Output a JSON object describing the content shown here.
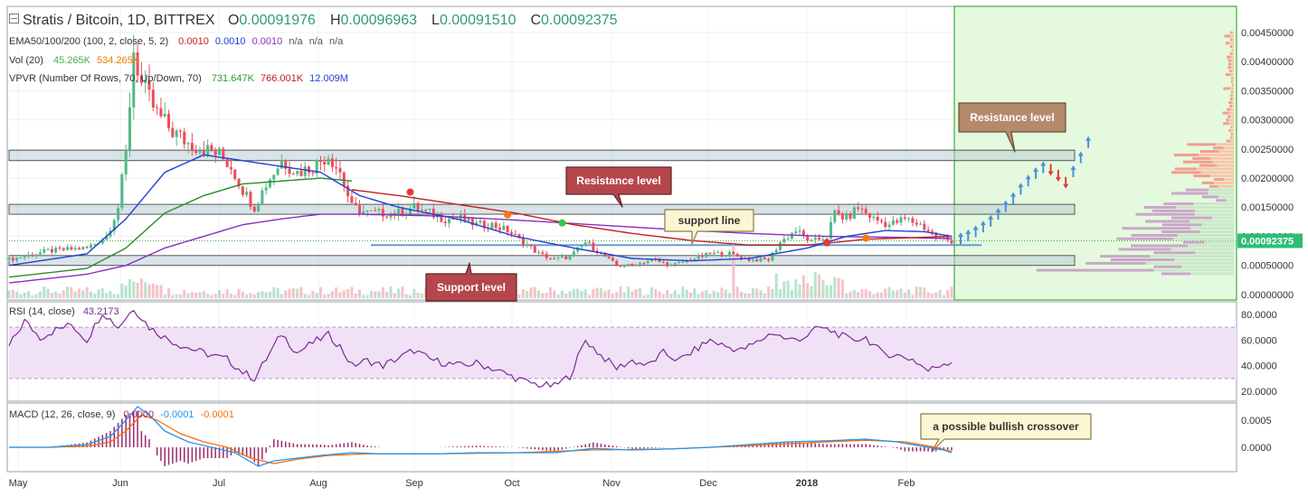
{
  "header": {
    "symbol": "Stratis / Bitcoin, 1D, BITTREX",
    "ohlc": [
      {
        "k": "O",
        "v": "0.00091976"
      },
      {
        "k": "H",
        "v": "0.00096963"
      },
      {
        "k": "L",
        "v": "0.00091510"
      },
      {
        "k": "C",
        "v": "0.00092375"
      }
    ],
    "ema_label": "EMA50/100/200 (100, 2, close, 5, 2)",
    "ema_values": [
      "0.0010",
      "0.0010",
      "0.0010",
      "n/a",
      "n/a",
      "n/a"
    ],
    "vol_label": "Vol (20)",
    "vol_values": [
      "45.265K",
      "534.265K"
    ],
    "vpvr_label": "VPVR (Number Of Rows, 70, Up/Down, 70)",
    "vpvr_values": [
      "731.647K",
      "766.001K",
      "12.009M"
    ]
  },
  "colors": {
    "up": "#53b987",
    "down": "#eb4d5c",
    "ema50": "#1f3fd6",
    "ema100": "#c22020",
    "ema200": "#8a2cc4",
    "green_ema": "#2a8c2a",
    "forecast_bg": "#e4f9dd",
    "zone": "#b9cdd6",
    "rsi": "#7a2a94",
    "macd": "#2196f3",
    "signal": "#ff6d00",
    "hist": "#9c2a6a",
    "support": "#6a9ad6",
    "callout_brown": "#b58a6c",
    "callout_red": "#b5474c",
    "callout_yellow": "#fbf6d3"
  },
  "annotations": {
    "resistance_left": "Resistance level",
    "resistance_right": "Resistance level",
    "support_level": "Support level",
    "support_line": "support line",
    "bullish": "a possible bullish crossover"
  },
  "chart_data": [
    {
      "type": "candlestick",
      "title": "Stratis / Bitcoin, 1D, BITTREX",
      "x_ticks": [
        "May",
        "Jun",
        "Jul",
        "Aug",
        "Sep",
        "Oct",
        "Nov",
        "Dec",
        "2018",
        "Feb"
      ],
      "y_ticks": [
        "0.00450000",
        "0.00400000",
        "0.00350000",
        "0.00300000",
        "0.00250000",
        "0.00200000",
        "0.00150000",
        "0.00100000",
        "0.00050000",
        "0.00000000"
      ],
      "ylim": [
        0,
        0.0047
      ],
      "last_price_label": "0.00092375",
      "close_anchors": [
        [
          0,
          0.0006
        ],
        [
          10,
          0.00075
        ],
        [
          20,
          0.0008
        ],
        [
          25,
          0.001
        ],
        [
          28,
          0.0015
        ],
        [
          30,
          0.0024
        ],
        [
          32,
          0.0042
        ],
        [
          34,
          0.0036
        ],
        [
          38,
          0.0031
        ],
        [
          42,
          0.0028
        ],
        [
          46,
          0.0026
        ],
        [
          50,
          0.0025
        ],
        [
          54,
          0.0024
        ],
        [
          57,
          0.0022
        ],
        [
          60,
          0.0018
        ],
        [
          63,
          0.0015
        ],
        [
          66,
          0.0019
        ],
        [
          70,
          0.0023
        ],
        [
          74,
          0.0021
        ],
        [
          78,
          0.0022
        ],
        [
          82,
          0.0024
        ],
        [
          85,
          0.0021
        ],
        [
          88,
          0.0015
        ],
        [
          92,
          0.0014
        ],
        [
          96,
          0.0014
        ],
        [
          100,
          0.0014
        ],
        [
          104,
          0.0015
        ],
        [
          108,
          0.0014
        ],
        [
          112,
          0.0013
        ],
        [
          116,
          0.0013
        ],
        [
          120,
          0.0012
        ],
        [
          124,
          0.0012
        ],
        [
          128,
          0.0011
        ],
        [
          132,
          0.0009
        ],
        [
          136,
          0.0007
        ],
        [
          140,
          0.0006
        ],
        [
          144,
          0.00065
        ],
        [
          148,
          0.0009
        ],
        [
          152,
          0.0007
        ],
        [
          156,
          0.0005
        ],
        [
          160,
          0.0005
        ],
        [
          165,
          0.0006
        ],
        [
          170,
          0.0005
        ],
        [
          175,
          0.0006
        ],
        [
          180,
          0.0007
        ],
        [
          185,
          0.0007
        ],
        [
          190,
          0.0006
        ],
        [
          195,
          0.0006
        ],
        [
          198,
          0.0009
        ],
        [
          202,
          0.0011
        ],
        [
          206,
          0.0009
        ],
        [
          210,
          0.001
        ],
        [
          212,
          0.0014
        ],
        [
          215,
          0.0013
        ],
        [
          218,
          0.0015
        ],
        [
          222,
          0.0013
        ],
        [
          226,
          0.0012
        ],
        [
          230,
          0.0013
        ],
        [
          234,
          0.0012
        ],
        [
          238,
          0.001
        ],
        [
          242,
          0.00092
        ]
      ],
      "ema": {
        "ema50": [
          [
            0,
            0.0005
          ],
          [
            20,
            0.0007
          ],
          [
            30,
            0.0013
          ],
          [
            40,
            0.0021
          ],
          [
            50,
            0.0024
          ],
          [
            60,
            0.0023
          ],
          [
            70,
            0.0022
          ],
          [
            80,
            0.0021
          ],
          [
            90,
            0.0017
          ],
          [
            100,
            0.0015
          ],
          [
            115,
            0.0013
          ],
          [
            130,
            0.001
          ],
          [
            145,
            0.0008
          ],
          [
            160,
            0.00062
          ],
          [
            175,
            0.00058
          ],
          [
            190,
            0.00062
          ],
          [
            205,
            0.0008
          ],
          [
            215,
            0.001
          ],
          [
            225,
            0.0011
          ],
          [
            235,
            0.00108
          ],
          [
            242,
            0.001
          ]
        ],
        "ema100": [
          [
            88,
            0.0018
          ],
          [
            100,
            0.0017
          ],
          [
            115,
            0.00155
          ],
          [
            130,
            0.0014
          ],
          [
            145,
            0.0012
          ],
          [
            160,
            0.00105
          ],
          [
            175,
            0.00093
          ],
          [
            190,
            0.00085
          ],
          [
            205,
            0.00085
          ],
          [
            220,
            0.00095
          ],
          [
            242,
            0.001
          ]
        ],
        "ema200": [
          [
            0,
            0.0002
          ],
          [
            20,
            0.00035
          ],
          [
            30,
            0.0005
          ],
          [
            40,
            0.0008
          ],
          [
            50,
            0.001
          ],
          [
            60,
            0.0012
          ],
          [
            70,
            0.0013
          ],
          [
            80,
            0.00138
          ],
          [
            90,
            0.00138
          ],
          [
            110,
            0.00135
          ],
          [
            130,
            0.00128
          ],
          [
            150,
            0.0012
          ],
          [
            170,
            0.00112
          ],
          [
            190,
            0.00105
          ],
          [
            210,
            0.001
          ],
          [
            230,
            0.00098
          ],
          [
            242,
            0.00096
          ]
        ],
        "green": [
          [
            0,
            0.0003
          ],
          [
            20,
            0.00045
          ],
          [
            30,
            0.0008
          ],
          [
            40,
            0.0014
          ],
          [
            50,
            0.0017
          ],
          [
            60,
            0.0019
          ],
          [
            70,
            0.00195
          ],
          [
            80,
            0.002
          ],
          [
            88,
            0.00195
          ]
        ]
      },
      "cross_markers": [
        {
          "i": 103,
          "v": 0.00176,
          "color": "#e53935"
        },
        {
          "i": 128,
          "v": 0.00137,
          "color": "#f57c00"
        },
        {
          "i": 142,
          "v": 0.00123,
          "color": "#2ecc40"
        },
        {
          "i": 210,
          "v": 0.00089,
          "color": "#e53935"
        },
        {
          "i": 220,
          "v": 0.00097,
          "color": "#f57c00"
        }
      ],
      "zones": [
        [
          0.0023,
          0.00248
        ],
        [
          0.00138,
          0.00155
        ],
        [
          0.0005,
          0.00067
        ]
      ],
      "support_line_y": 0.00085,
      "forecast_arrows": [
        {
          "dir": "up",
          "v": 0.00093
        },
        {
          "dir": "up",
          "v": 0.00098
        },
        {
          "dir": "up",
          "v": 0.00105
        },
        {
          "dir": "up",
          "v": 0.00113
        },
        {
          "dir": "up",
          "v": 0.00123
        },
        {
          "dir": "up",
          "v": 0.00135
        },
        {
          "dir": "up",
          "v": 0.00148
        },
        {
          "dir": "up",
          "v": 0.00162
        },
        {
          "dir": "up",
          "v": 0.00178
        },
        {
          "dir": "up",
          "v": 0.00192
        },
        {
          "dir": "up",
          "v": 0.00205
        },
        {
          "dir": "up",
          "v": 0.00215
        },
        {
          "dir": "down",
          "v": 0.00218
        },
        {
          "dir": "down",
          "v": 0.00208
        },
        {
          "dir": "down",
          "v": 0.00196
        },
        {
          "dir": "up",
          "v": 0.00208
        },
        {
          "dir": "up",
          "v": 0.00232
        },
        {
          "dir": "up",
          "v": 0.00258
        }
      ]
    },
    {
      "type": "line",
      "title": "RSI (14, close)",
      "value_label": "43.2173",
      "y_ticks": [
        "80.0000",
        "60.0000",
        "40.0000",
        "20.0000"
      ],
      "ylim": [
        15,
        90
      ],
      "band": [
        30,
        70
      ],
      "anchors": [
        [
          0,
          55
        ],
        [
          4,
          75
        ],
        [
          8,
          62
        ],
        [
          12,
          68
        ],
        [
          16,
          72
        ],
        [
          20,
          60
        ],
        [
          24,
          82
        ],
        [
          28,
          70
        ],
        [
          32,
          85
        ],
        [
          36,
          70
        ],
        [
          40,
          62
        ],
        [
          44,
          56
        ],
        [
          48,
          52
        ],
        [
          52,
          48
        ],
        [
          56,
          45
        ],
        [
          60,
          35
        ],
        [
          63,
          30
        ],
        [
          66,
          45
        ],
        [
          70,
          65
        ],
        [
          74,
          50
        ],
        [
          78,
          58
        ],
        [
          82,
          64
        ],
        [
          85,
          55
        ],
        [
          88,
          40
        ],
        [
          92,
          44
        ],
        [
          96,
          40
        ],
        [
          100,
          46
        ],
        [
          104,
          52
        ],
        [
          108,
          45
        ],
        [
          112,
          42
        ],
        [
          116,
          40
        ],
        [
          120,
          42
        ],
        [
          124,
          38
        ],
        [
          128,
          33
        ],
        [
          132,
          28
        ],
        [
          136,
          25
        ],
        [
          140,
          24
        ],
        [
          144,
          32
        ],
        [
          148,
          60
        ],
        [
          152,
          48
        ],
        [
          156,
          38
        ],
        [
          160,
          44
        ],
        [
          164,
          40
        ],
        [
          168,
          50
        ],
        [
          172,
          44
        ],
        [
          176,
          52
        ],
        [
          180,
          60
        ],
        [
          184,
          55
        ],
        [
          188,
          52
        ],
        [
          192,
          58
        ],
        [
          196,
          66
        ],
        [
          200,
          60
        ],
        [
          204,
          62
        ],
        [
          208,
          70
        ],
        [
          212,
          66
        ],
        [
          216,
          60
        ],
        [
          220,
          62
        ],
        [
          224,
          50
        ],
        [
          228,
          48
        ],
        [
          232,
          45
        ],
        [
          236,
          36
        ],
        [
          240,
          42
        ],
        [
          242,
          43.2
        ]
      ]
    },
    {
      "type": "line",
      "title": "MACD (12, 26, close, 9)",
      "values_label": [
        "0.0000",
        "-0.0001",
        "-0.0001"
      ],
      "y_ticks": [
        "0.0005",
        "0.0000"
      ],
      "ylim": [
        -0.00038,
        0.0008
      ],
      "macd": [
        [
          0,
          0
        ],
        [
          10,
          0
        ],
        [
          20,
          5e-05
        ],
        [
          26,
          0.0002
        ],
        [
          30,
          0.0005
        ],
        [
          33,
          0.00075
        ],
        [
          36,
          0.0006
        ],
        [
          40,
          0.0003
        ],
        [
          46,
          0.0001
        ],
        [
          52,
          0
        ],
        [
          58,
          -0.0001
        ],
        [
          64,
          -0.00035
        ],
        [
          68,
          -0.00025
        ],
        [
          74,
          -0.0002
        ],
        [
          80,
          -0.00015
        ],
        [
          88,
          -0.0001
        ],
        [
          96,
          -0.00012
        ],
        [
          110,
          -0.00012
        ],
        [
          120,
          -0.0001
        ],
        [
          130,
          -0.0001
        ],
        [
          140,
          -0.0001
        ],
        [
          150,
          -2e-05
        ],
        [
          160,
          -5e-05
        ],
        [
          170,
          -3e-05
        ],
        [
          180,
          0
        ],
        [
          190,
          5e-05
        ],
        [
          200,
          0.0001
        ],
        [
          210,
          0.00012
        ],
        [
          220,
          0.00015
        ],
        [
          228,
          0.0001
        ],
        [
          236,
          0.0
        ],
        [
          240,
          -5e-05
        ],
        [
          242,
          -0.0001
        ]
      ],
      "signal": [
        [
          0,
          0
        ],
        [
          10,
          0.0
        ],
        [
          20,
          2e-05
        ],
        [
          26,
          0.0001
        ],
        [
          30,
          0.0003
        ],
        [
          34,
          0.0006
        ],
        [
          38,
          0.0005
        ],
        [
          44,
          0.00025
        ],
        [
          50,
          0.0001
        ],
        [
          56,
          0
        ],
        [
          62,
          -0.0002
        ],
        [
          68,
          -0.0003
        ],
        [
          74,
          -0.00022
        ],
        [
          82,
          -0.00015
        ],
        [
          92,
          -0.00012
        ],
        [
          110,
          -0.00012
        ],
        [
          130,
          -0.0001
        ],
        [
          150,
          -5e-05
        ],
        [
          170,
          -3e-05
        ],
        [
          190,
          3e-05
        ],
        [
          210,
          0.0001
        ],
        [
          220,
          0.00013
        ],
        [
          230,
          0.0001
        ],
        [
          238,
          0.0
        ],
        [
          242,
          -8e-05
        ]
      ]
    }
  ]
}
